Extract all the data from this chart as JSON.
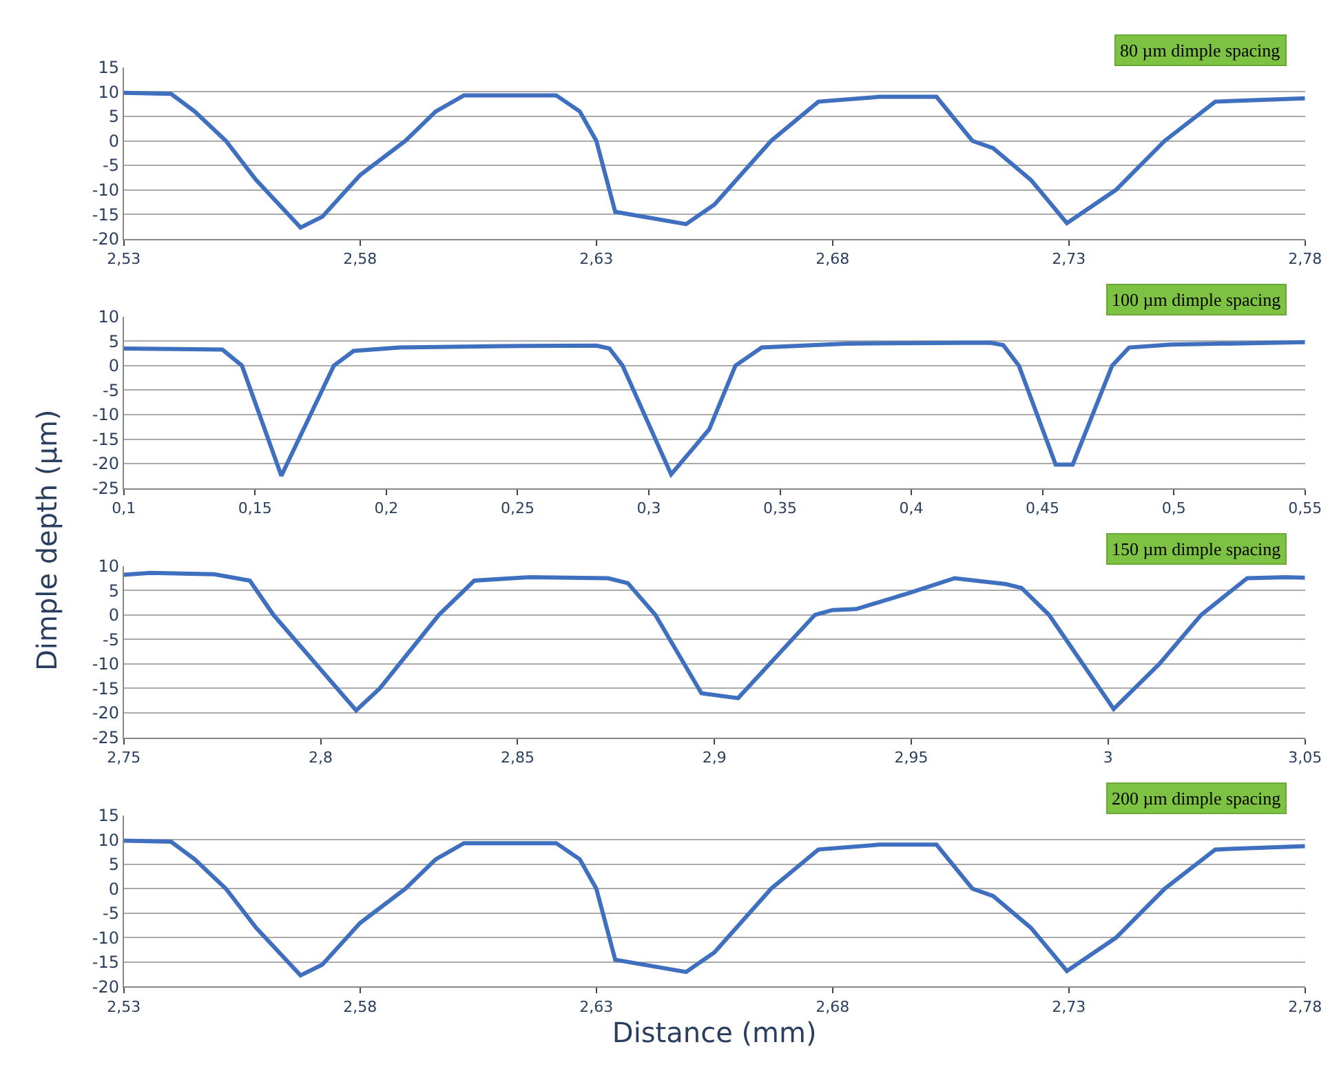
{
  "chart_data": [
    {
      "type": "line",
      "annotations": [
        "80 µm dimple spacing"
      ],
      "grid": "y",
      "marker": "none",
      "line_style": "solid",
      "xlim": [
        2.53,
        2.78
      ],
      "xticks": [
        {
          "value": 2.53,
          "label": "2,53"
        },
        {
          "value": 2.58,
          "label": "2,58"
        },
        {
          "value": 2.63,
          "label": "2,63"
        },
        {
          "value": 2.68,
          "label": "2,68"
        },
        {
          "value": 2.73,
          "label": "2,73"
        },
        {
          "value": 2.78,
          "label": "2,78"
        }
      ],
      "ylim": [
        -20,
        15
      ],
      "yticks": [
        -20,
        -15,
        -10,
        -5,
        0,
        5,
        10,
        15
      ],
      "series": [
        {
          "color": "#3f6fbf",
          "x": [
            2.53,
            2.54,
            2.545,
            2.5516,
            2.558,
            2.5674,
            2.572,
            2.58,
            2.5896,
            2.596,
            2.602,
            2.6215,
            2.6265,
            2.63,
            2.634,
            2.649,
            2.655,
            2.667,
            2.677,
            2.69,
            2.702,
            2.7096,
            2.714,
            2.722,
            2.7296,
            2.74,
            2.7503,
            2.761,
            2.78
          ],
          "values": [
            9.8,
            9.6,
            6,
            0,
            -8,
            -17.7,
            -15.5,
            -7,
            0,
            6,
            9.3,
            9.3,
            6,
            0,
            -14.5,
            -17,
            -13,
            0,
            8,
            9,
            9,
            0,
            -1.5,
            -8,
            -16.8,
            -10,
            0,
            8,
            8.7
          ]
        }
      ]
    },
    {
      "type": "line",
      "annotations": [
        "100 µm dimple spacing"
      ],
      "grid": "y",
      "marker": "none",
      "line_style": "solid",
      "ylabel": "Dimple depth (µm)",
      "xlim": [
        0.1,
        0.55
      ],
      "xticks": [
        {
          "value": 0.1,
          "label": "0,1"
        },
        {
          "value": 0.15,
          "label": "0,15"
        },
        {
          "value": 0.2,
          "label": "0,2"
        },
        {
          "value": 0.25,
          "label": "0,25"
        },
        {
          "value": 0.3,
          "label": "0,3"
        },
        {
          "value": 0.35,
          "label": "0,35"
        },
        {
          "value": 0.4,
          "label": "0,4"
        },
        {
          "value": 0.45,
          "label": "0,45"
        },
        {
          "value": 0.5,
          "label": "0,5"
        },
        {
          "value": 0.55,
          "label": "0,55"
        }
      ],
      "ylim": [
        -25,
        10
      ],
      "yticks": [
        -25,
        -20,
        -15,
        -10,
        -5,
        0,
        5,
        10
      ],
      "series": [
        {
          "color": "#3f6fbf",
          "x": [
            0.1,
            0.1375,
            0.145,
            0.16,
            0.18,
            0.1875,
            0.205,
            0.245,
            0.28,
            0.285,
            0.29,
            0.3085,
            0.323,
            0.333,
            0.343,
            0.375,
            0.43,
            0.435,
            0.441,
            0.455,
            0.4615,
            0.4765,
            0.483,
            0.499,
            0.55
          ],
          "values": [
            3.5,
            3.3,
            0,
            -22.5,
            0,
            3,
            3.7,
            4,
            4.1,
            3.5,
            0,
            -22.2,
            -13,
            0,
            3.7,
            4.5,
            4.7,
            4.2,
            0,
            -20.2,
            -20.2,
            0,
            3.7,
            4.3,
            4.8
          ]
        }
      ]
    },
    {
      "type": "line",
      "annotations": [
        "150 µm dimple spacing"
      ],
      "grid": "y",
      "marker": "none",
      "line_style": "solid",
      "xlim": [
        2.75,
        3.05
      ],
      "xticks": [
        {
          "value": 2.75,
          "label": "2,75"
        },
        {
          "value": 2.8,
          "label": "2,8"
        },
        {
          "value": 2.85,
          "label": "2,85"
        },
        {
          "value": 2.9,
          "label": "2,9"
        },
        {
          "value": 2.95,
          "label": "2,95"
        },
        {
          "value": 3,
          "label": "3"
        },
        {
          "value": 3.05,
          "label": "3,05"
        }
      ],
      "ylim": [
        -25,
        10
      ],
      "yticks": [
        -25,
        -20,
        -15,
        -10,
        -5,
        0,
        5,
        10
      ],
      "series": [
        {
          "color": "#3f6fbf",
          "x": [
            2.75,
            2.7567,
            2.773,
            2.782,
            2.788,
            2.809,
            2.815,
            2.83,
            2.839,
            2.853,
            2.873,
            2.878,
            2.885,
            2.8967,
            2.906,
            2.9255,
            2.93,
            2.936,
            2.9495,
            2.961,
            2.974,
            2.978,
            2.985,
            3.0014,
            3.013,
            3.0236,
            3.0353,
            3.045,
            3.05
          ],
          "values": [
            8.2,
            8.6,
            8.3,
            7,
            0,
            -19.5,
            -15,
            0,
            7,
            7.7,
            7.5,
            6.5,
            0,
            -16,
            -17,
            0,
            1,
            1.2,
            4.5,
            7.5,
            6.3,
            5.5,
            0,
            -19.2,
            -10,
            0,
            7.5,
            7.7,
            7.6
          ]
        }
      ]
    },
    {
      "type": "line",
      "annotations": [
        "200 µm dimple spacing"
      ],
      "grid": "y",
      "marker": "none",
      "line_style": "solid",
      "xlabel": "Distance (mm)",
      "xlim": [
        2.53,
        2.78
      ],
      "xticks": [
        {
          "value": 2.53,
          "label": "2,53"
        },
        {
          "value": 2.58,
          "label": "2,58"
        },
        {
          "value": 2.63,
          "label": "2,63"
        },
        {
          "value": 2.68,
          "label": "2,68"
        },
        {
          "value": 2.73,
          "label": "2,73"
        },
        {
          "value": 2.78,
          "label": "2,78"
        }
      ],
      "ylim": [
        -20,
        15
      ],
      "yticks": [
        -20,
        -15,
        -10,
        -5,
        0,
        5,
        10,
        15
      ],
      "series": [
        {
          "color": "#3f6fbf",
          "x": [
            2.53,
            2.54,
            2.545,
            2.5516,
            2.558,
            2.5674,
            2.572,
            2.58,
            2.5896,
            2.596,
            2.602,
            2.6215,
            2.6265,
            2.63,
            2.634,
            2.649,
            2.655,
            2.667,
            2.677,
            2.69,
            2.702,
            2.7096,
            2.714,
            2.722,
            2.7296,
            2.74,
            2.7503,
            2.761,
            2.78
          ],
          "values": [
            9.8,
            9.6,
            6,
            0,
            -8,
            -17.7,
            -15.5,
            -7,
            0,
            6,
            9.3,
            9.3,
            6,
            0,
            -14.5,
            -17,
            -13,
            0,
            8,
            9,
            9,
            0,
            -1.5,
            -8,
            -16.8,
            -10,
            0,
            8,
            8.7
          ]
        }
      ]
    }
  ]
}
